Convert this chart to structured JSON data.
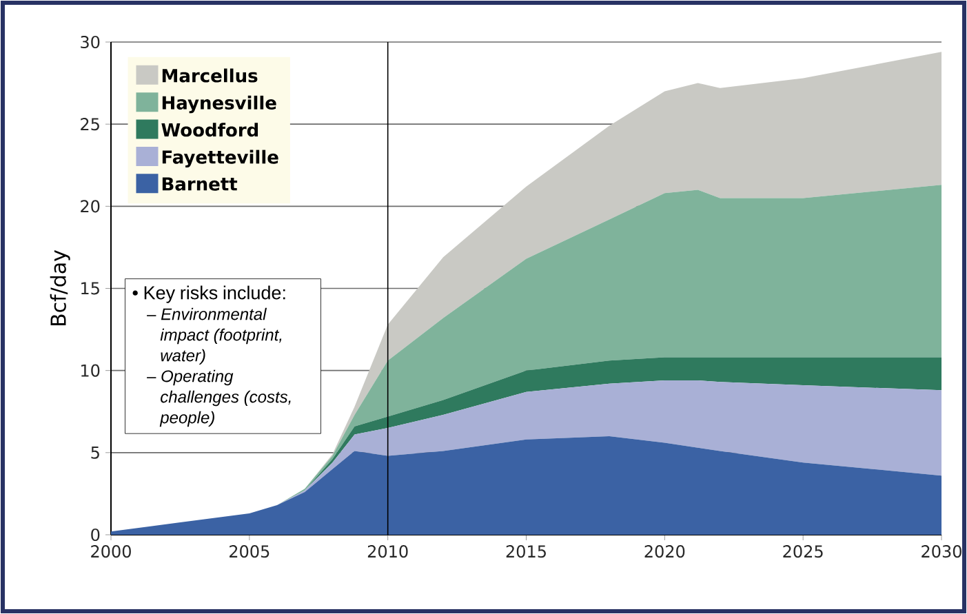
{
  "chart_data": {
    "type": "area",
    "stacked": true,
    "ylabel": "Bcf/day",
    "x": [
      2000,
      2005,
      2006,
      2007,
      2008,
      2008.8,
      2010,
      2012,
      2015,
      2018,
      2020,
      2021.2,
      2022,
      2025,
      2030
    ],
    "series": [
      {
        "name": "Barnett",
        "color": "#3b62a4",
        "values": [
          0.2,
          1.3,
          1.8,
          2.6,
          4.0,
          5.1,
          4.8,
          5.1,
          5.8,
          6.0,
          5.6,
          5.3,
          5.1,
          4.4,
          3.6
        ]
      },
      {
        "name": "Fayetteville",
        "color": "#a9b0d6",
        "values": [
          0,
          0,
          0,
          0.1,
          0.4,
          1.0,
          1.7,
          2.2,
          2.9,
          3.2,
          3.8,
          4.1,
          4.2,
          4.7,
          5.2
        ]
      },
      {
        "name": "Woodford",
        "color": "#2f7a5e",
        "values": [
          0,
          0,
          0,
          0,
          0.2,
          0.5,
          0.7,
          0.9,
          1.3,
          1.4,
          1.4,
          1.4,
          1.5,
          1.7,
          2.0
        ]
      },
      {
        "name": "Haynesville",
        "color": "#7fb39b",
        "values": [
          0,
          0,
          0,
          0.1,
          0.2,
          0.7,
          3.4,
          5.0,
          6.8,
          8.6,
          10.0,
          10.2,
          9.7,
          9.7,
          10.5
        ]
      },
      {
        "name": "Marcellus",
        "color": "#c9c9c4",
        "values": [
          0,
          0,
          0,
          0,
          0.1,
          0.5,
          2.2,
          3.7,
          4.4,
          5.7,
          6.2,
          6.5,
          6.7,
          7.3,
          8.1
        ]
      }
    ],
    "xlim": [
      2000,
      2030
    ],
    "ylim": [
      0,
      30
    ],
    "xticks": [
      2000,
      2005,
      2010,
      2015,
      2020,
      2025,
      2030
    ],
    "yticks": [
      0,
      5,
      10,
      15,
      20,
      25,
      30
    ],
    "grid": "y",
    "legend": "top left",
    "ref_lines": [
      {
        "axis": "x",
        "value": 2010,
        "color": "#000000"
      }
    ],
    "annotations": [
      "• Key risks include:",
      "– *Environmental impact (footprint, water)*",
      "– *Operating challenges (costs, people)*"
    ]
  }
}
